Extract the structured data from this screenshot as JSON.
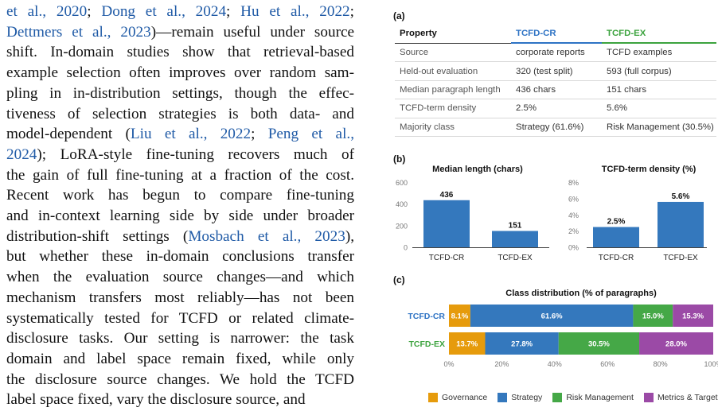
{
  "body_text": [
    {
      "parts": [
        {
          "t": "et al., 2020",
          "c": true
        },
        {
          "t": "; ",
          "c": false
        },
        {
          "t": "Dong et al., 2024",
          "c": true
        },
        {
          "t": "; ",
          "c": false
        },
        {
          "t": "Hu et al., 2022",
          "c": true
        },
        {
          "t": ";",
          "c": false
        }
      ]
    },
    {
      "parts": [
        {
          "t": "Dettmers et al., 2023",
          "c": true
        },
        {
          "t": ")—remain useful under source",
          "c": false
        }
      ]
    },
    {
      "parts": [
        {
          "t": "shift. In-domain studies show that retrieval-based",
          "c": false
        }
      ]
    },
    {
      "parts": [
        {
          "t": "example selection often improves over random sam-",
          "c": false
        }
      ]
    },
    {
      "parts": [
        {
          "t": "pling in in-distribution settings, though the effec-",
          "c": false
        }
      ]
    },
    {
      "parts": [
        {
          "t": "tiveness of selection strategies is both data- and",
          "c": false
        }
      ]
    },
    {
      "parts": [
        {
          "t": "model-dependent (",
          "c": false
        },
        {
          "t": "Liu et al., 2022",
          "c": true
        },
        {
          "t": "; ",
          "c": false
        },
        {
          "t": "Peng et al.,",
          "c": true
        }
      ]
    },
    {
      "parts": [
        {
          "t": "2024",
          "c": true
        },
        {
          "t": "); LoRA-style fine-tuning recovers much of",
          "c": false
        }
      ]
    },
    {
      "parts": [
        {
          "t": "the gain of full fine-tuning at a fraction of the cost.",
          "c": false
        }
      ]
    },
    {
      "parts": [
        {
          "t": "Recent work has begun to compare fine-tuning",
          "c": false
        }
      ]
    },
    {
      "parts": [
        {
          "t": "and in-context learning side by side under broader",
          "c": false
        }
      ]
    },
    {
      "parts": [
        {
          "t": "distribution-shift settings (",
          "c": false
        },
        {
          "t": "Mosbach et al., 2023",
          "c": true
        },
        {
          "t": "),",
          "c": false
        }
      ]
    },
    {
      "parts": [
        {
          "t": "but whether these in-domain conclusions transfer",
          "c": false
        }
      ]
    },
    {
      "parts": [
        {
          "t": "when the evaluation source changes—and which",
          "c": false
        }
      ]
    },
    {
      "parts": [
        {
          "t": "mechanism transfers most reliably—has not been",
          "c": false
        }
      ]
    },
    {
      "parts": [
        {
          "t": "systematically tested for TCFD or related climate-",
          "c": false
        }
      ]
    },
    {
      "parts": [
        {
          "t": "disclosure tasks. Our setting is narrower: the task",
          "c": false
        }
      ]
    },
    {
      "parts": [
        {
          "t": "domain and label space remain fixed, while only",
          "c": false
        }
      ]
    },
    {
      "parts": [
        {
          "t": "the disclosure source changes. We hold the TCFD",
          "c": false
        }
      ]
    },
    {
      "parts": [
        {
          "t": "label space fixed, vary the disclosure source, and",
          "c": false
        }
      ]
    }
  ],
  "figure": {
    "panel_a_label": "(a)",
    "panel_b_label": "(b)",
    "panel_c_label": "(c)",
    "table": {
      "headers": [
        "Property",
        "TCFD-CR",
        "TCFD-EX"
      ],
      "rows": [
        [
          "Source",
          "corporate reports",
          "TCFD examples"
        ],
        [
          "Held-out evaluation",
          "320 (test split)",
          "593 (full corpus)"
        ],
        [
          "Median paragraph length",
          "436 chars",
          "151 chars"
        ],
        [
          "TCFD-term density",
          "2.5%",
          "5.6%"
        ],
        [
          "Majority class",
          "Strategy (61.6%)",
          "Risk Management (30.5%)"
        ]
      ]
    }
  },
  "colors": {
    "cr": "#2e73c4",
    "ex": "#3ca33e",
    "bar": "#3478bd",
    "governance": "#e69b0c",
    "strategy": "#3478bd",
    "risk": "#45a847",
    "metrics": "#9b4aa6",
    "citation": "#1f5aa6"
  },
  "chart_data": [
    {
      "type": "bar",
      "title": "Median length (chars)",
      "categories": [
        "TCFD-CR",
        "TCFD-EX"
      ],
      "values": [
        436,
        151
      ],
      "value_labels": [
        "436",
        "151"
      ],
      "ylim": [
        0,
        600
      ],
      "yticks": [
        0,
        200,
        400,
        600
      ],
      "ytick_labels": [
        "0",
        "200",
        "400",
        "600"
      ],
      "grid": false
    },
    {
      "type": "bar",
      "title": "TCFD-term density (%)",
      "categories": [
        "TCFD-CR",
        "TCFD-EX"
      ],
      "values": [
        2.5,
        5.6
      ],
      "value_labels": [
        "2.5%",
        "5.6%"
      ],
      "ylim": [
        0,
        8
      ],
      "yticks": [
        0,
        2,
        4,
        6,
        8
      ],
      "ytick_labels": [
        "0%",
        "2%",
        "4%",
        "6%",
        "8%"
      ],
      "grid": false
    },
    {
      "type": "bar",
      "subtype": "stacked-horizontal",
      "title": "Class distribution (% of paragraphs)",
      "categories": [
        "TCFD-CR",
        "TCFD-EX"
      ],
      "series": [
        {
          "name": "Governance",
          "values": [
            8.1,
            13.7
          ],
          "labels": [
            "8.1%",
            "13.7%"
          ]
        },
        {
          "name": "Strategy",
          "values": [
            61.6,
            27.8
          ],
          "labels": [
            "61.6%",
            "27.8%"
          ]
        },
        {
          "name": "Risk Management",
          "values": [
            15.0,
            30.5
          ],
          "labels": [
            "15.0%",
            "30.5%"
          ]
        },
        {
          "name": "Metrics & Targets",
          "values": [
            15.3,
            28.0
          ],
          "labels": [
            "15.3%",
            "28.0%"
          ]
        }
      ],
      "xlim": [
        0,
        100
      ],
      "xticks": [
        0,
        20,
        40,
        60,
        80,
        100
      ],
      "xtick_labels": [
        "0%",
        "20%",
        "40%",
        "60%",
        "80%",
        "100%"
      ],
      "legend": "bottom"
    }
  ]
}
